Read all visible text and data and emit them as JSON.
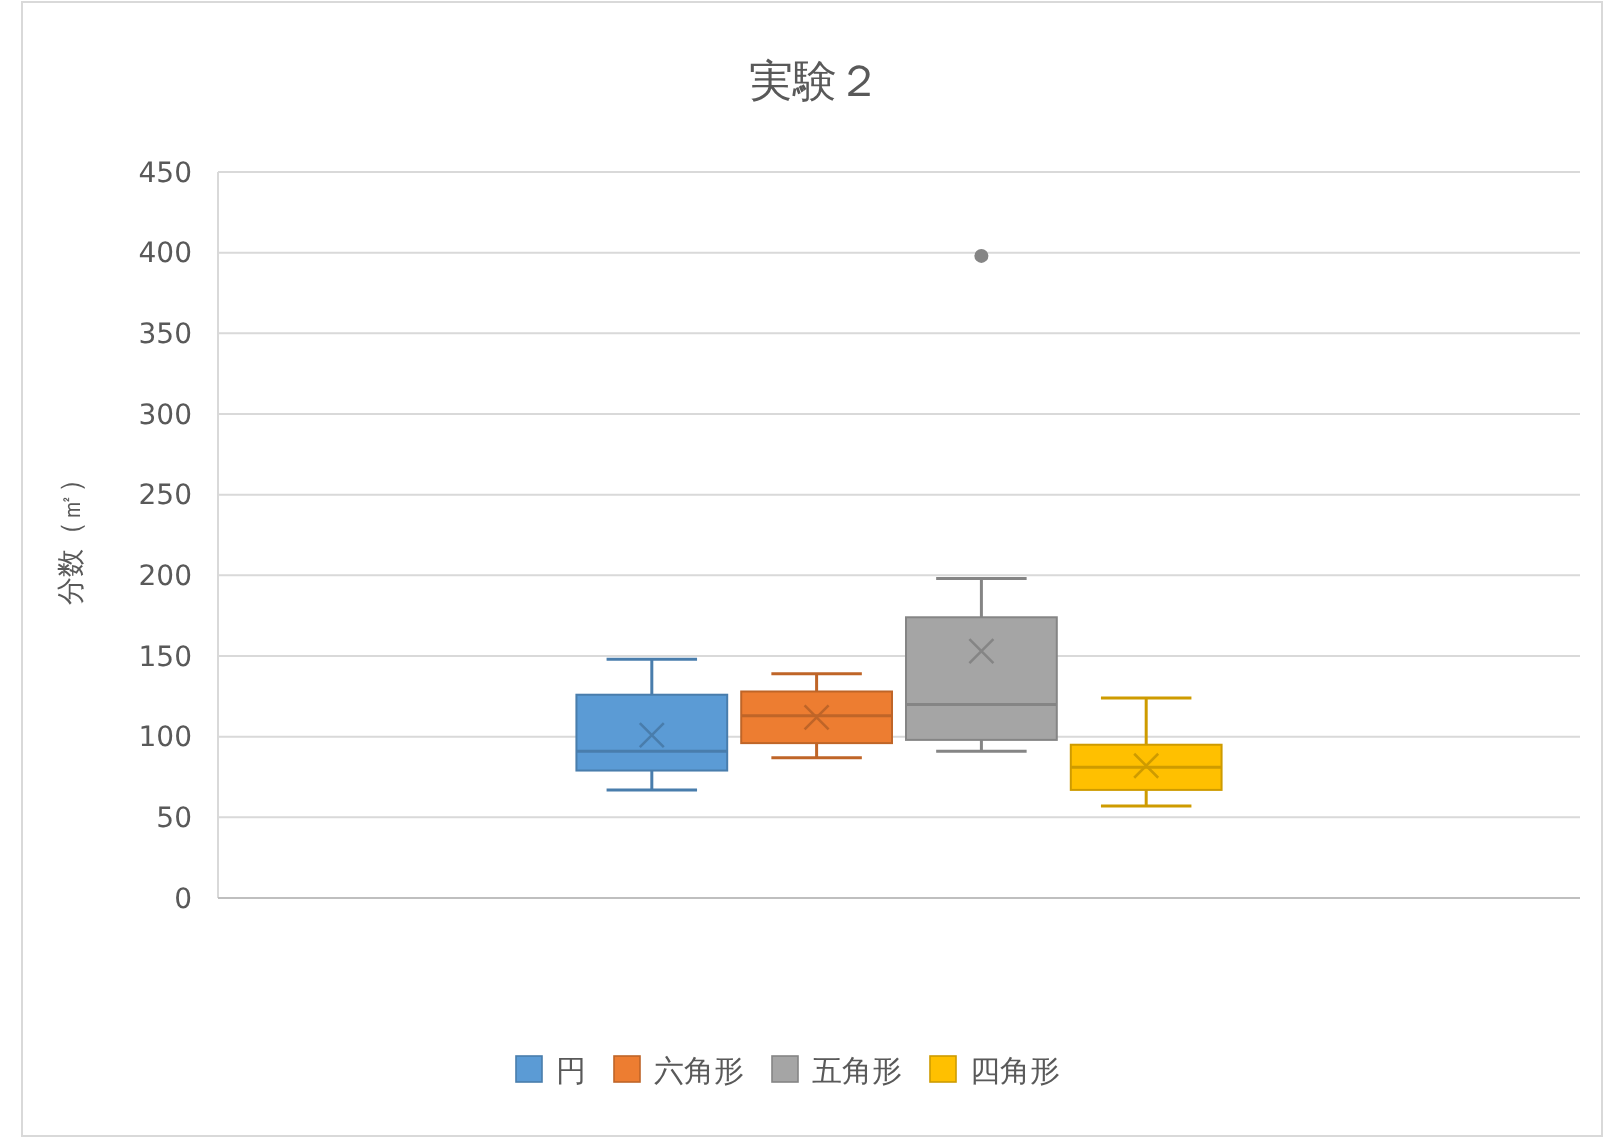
{
  "chart_data": {
    "type": "box",
    "title": "実験２",
    "ylabel": "分数（㎡）",
    "categories": [
      null
    ],
    "series": [
      {
        "name": "円",
        "color": "#5b9bd5",
        "boxes": [
          {
            "low": 67,
            "q1": 79,
            "median": 91,
            "q3": 126,
            "high": 148,
            "mean": 101
          }
        ]
      },
      {
        "name": "六角形",
        "color": "#ed7d31",
        "boxes": [
          {
            "low": 87,
            "q1": 96,
            "median": 113,
            "q3": 128,
            "high": 139,
            "mean": 112
          }
        ]
      },
      {
        "name": "五角形",
        "color": "#a5a5a5",
        "boxes": [
          {
            "low": 91,
            "q1": 98,
            "median": 120,
            "q3": 174,
            "high": 198,
            "mean": 153,
            "outliers": [
              398
            ]
          }
        ]
      },
      {
        "name": "四角形",
        "color": "#ffc000",
        "boxes": [
          {
            "low": 57,
            "q1": 67,
            "median": 81,
            "q3": 95,
            "high": 124,
            "mean": 82
          }
        ]
      }
    ],
    "ylim": [
      0,
      450
    ],
    "yticks": [
      0,
      50,
      100,
      150,
      200,
      250,
      300,
      350,
      400,
      450
    ],
    "grid": "y",
    "legend": "bottom"
  }
}
